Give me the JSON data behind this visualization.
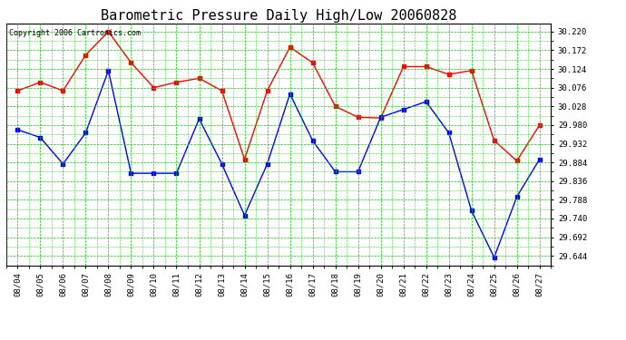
{
  "title": "Barometric Pressure Daily High/Low 20060828",
  "copyright": "Copyright 2006 Cartronics.com",
  "x_labels": [
    "08/04",
    "08/05",
    "08/06",
    "08/07",
    "08/08",
    "08/09",
    "08/10",
    "08/11",
    "08/12",
    "08/13",
    "08/14",
    "08/15",
    "08/16",
    "08/17",
    "08/18",
    "08/19",
    "08/20",
    "08/21",
    "08/22",
    "08/23",
    "08/24",
    "08/25",
    "08/26",
    "08/27"
  ],
  "high_values": [
    30.068,
    30.09,
    30.068,
    30.16,
    30.22,
    30.14,
    30.076,
    30.09,
    30.1,
    30.068,
    29.892,
    30.068,
    30.18,
    30.14,
    30.028,
    30.0,
    29.998,
    30.13,
    30.13,
    30.11,
    30.12,
    29.94,
    29.888,
    29.98
  ],
  "low_values": [
    29.968,
    29.948,
    29.88,
    29.96,
    30.12,
    29.856,
    29.856,
    29.856,
    29.996,
    29.88,
    29.748,
    29.88,
    30.06,
    29.94,
    29.86,
    29.86,
    30.0,
    30.02,
    30.04,
    29.96,
    29.76,
    29.64,
    29.796,
    29.892
  ],
  "high_color": "#ff0000",
  "low_color": "#0000ff",
  "bg_color": "#ffffff",
  "grid_color": "#00cc00",
  "title_fontsize": 11,
  "ylabel_values": [
    29.644,
    29.692,
    29.74,
    29.788,
    29.836,
    29.884,
    29.932,
    29.98,
    30.028,
    30.076,
    30.124,
    30.172,
    30.22
  ],
  "ymin": 29.62,
  "ymax": 30.24
}
